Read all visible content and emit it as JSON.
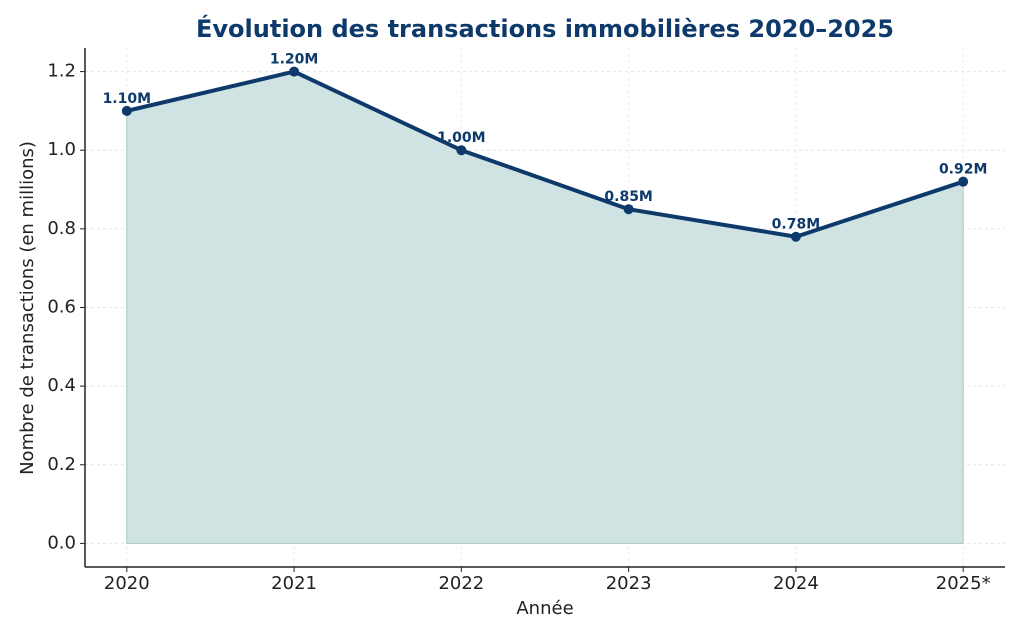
{
  "chart_data": {
    "type": "line",
    "title": "Évolution des transactions immobilières 2020–2025",
    "xlabel": "Année",
    "ylabel": "Nombre de transactions (en millions)",
    "categories": [
      "2020",
      "2021",
      "2022",
      "2023",
      "2024",
      "2025*"
    ],
    "values": [
      1.1,
      1.2,
      1.0,
      0.85,
      0.78,
      0.92
    ],
    "value_labels": [
      "1.10M",
      "1.20M",
      "1.00M",
      "0.85M",
      "0.78M",
      "0.92M"
    ],
    "color": "#0d3a6b",
    "fill_color": "#cfe3e3",
    "ylim": [
      -0.06,
      1.26
    ],
    "yticks": [
      {
        "value": 0,
        "label": "0.0"
      },
      0.2,
      0.4,
      0.6,
      0.8,
      {
        "value": 1,
        "label": "1.0"
      },
      1.2
    ],
    "grid": true
  }
}
